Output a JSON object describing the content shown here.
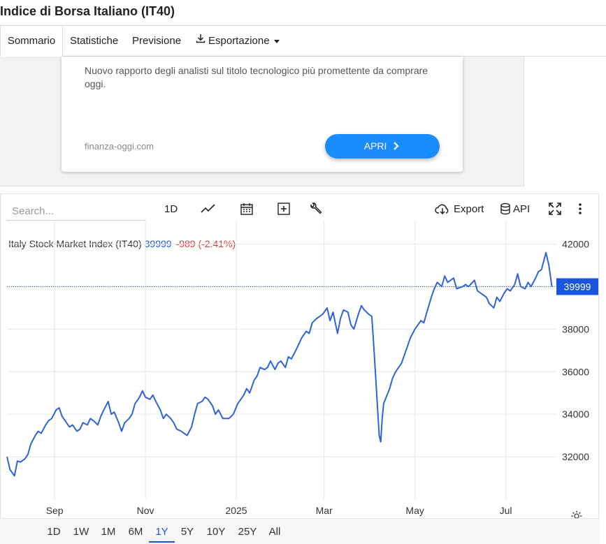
{
  "page": {
    "title": "Indice di Borsa Italiano (IT40)"
  },
  "tabs": [
    {
      "label": "Sommario",
      "active": true
    },
    {
      "label": "Statistiche"
    },
    {
      "label": "Previsione"
    },
    {
      "label": "Esportazione",
      "icon": "download-icon"
    }
  ],
  "ad": {
    "text": "Nuovo rapporto degli analisti sul titolo tecnologico più promettente da comprare oggi.",
    "domain": "finanza-oggi.com",
    "button_label": "APRI"
  },
  "chart_toolbar": {
    "search_placeholder": "Search...",
    "interval_label": "1D",
    "export_label": "Export",
    "api_label": "API",
    "icons": [
      "line-chart-icon",
      "calendar-icon",
      "add-icon",
      "wrench-icon",
      "cloud-download-icon",
      "database-icon",
      "fullscreen-icon",
      "more-vert-icon",
      "settings-icon"
    ]
  },
  "legend": {
    "name": "Italy Stock Market Index (IT40)",
    "value": "39999",
    "change": "-989 (-2.41%)"
  },
  "colors": {
    "line": "#2f63d8",
    "accent": "#1a56db",
    "negative": "#e03a3a",
    "ad_button": "#1a8cff"
  },
  "chart_data": {
    "type": "line",
    "title": "Italy Stock Market Index (IT40)",
    "x_tick_labels": [
      "Sep",
      "Nov",
      "2025",
      "Mar",
      "May",
      "Jul"
    ],
    "x_tick_dates": [
      "2024-09-01",
      "2024-11-01",
      "2025-01-01",
      "2025-03-01",
      "2025-05-01",
      "2025-07-01"
    ],
    "y_ticks": [
      32000,
      34000,
      36000,
      38000,
      40000,
      42000
    ],
    "y_tick_labels": [
      "32000",
      "34000",
      "36000",
      "38000",
      "",
      "42000"
    ],
    "ylim": [
      30000,
      43100
    ],
    "last_price_label": "39999",
    "last_price": 39999,
    "grid": true,
    "series": [
      {
        "points": [
          [
            "2024-07-31",
            32000
          ],
          [
            "2024-08-02",
            31400
          ],
          [
            "2024-08-05",
            31100
          ],
          [
            "2024-08-07",
            31800
          ],
          [
            "2024-08-09",
            31750
          ],
          [
            "2024-08-12",
            31900
          ],
          [
            "2024-08-14",
            32100
          ],
          [
            "2024-08-16",
            32600
          ],
          [
            "2024-08-19",
            33000
          ],
          [
            "2024-08-21",
            33200
          ],
          [
            "2024-08-23",
            33100
          ],
          [
            "2024-08-26",
            33500
          ],
          [
            "2024-08-28",
            33700
          ],
          [
            "2024-08-30",
            33800
          ],
          [
            "2024-09-02",
            34200
          ],
          [
            "2024-09-04",
            34300
          ],
          [
            "2024-09-06",
            33900
          ],
          [
            "2024-09-09",
            33600
          ],
          [
            "2024-09-11",
            33400
          ],
          [
            "2024-09-13",
            33500
          ],
          [
            "2024-09-16",
            33200
          ],
          [
            "2024-09-18",
            33300
          ],
          [
            "2024-09-20",
            33600
          ],
          [
            "2024-09-23",
            33500
          ],
          [
            "2024-09-25",
            33800
          ],
          [
            "2024-09-27",
            33700
          ],
          [
            "2024-09-30",
            33500
          ],
          [
            "2024-10-02",
            33900
          ],
          [
            "2024-10-04",
            34200
          ],
          [
            "2024-10-07",
            34600
          ],
          [
            "2024-10-09",
            34000
          ],
          [
            "2024-10-11",
            34100
          ],
          [
            "2024-10-14",
            33600
          ],
          [
            "2024-10-16",
            33200
          ],
          [
            "2024-10-18",
            33600
          ],
          [
            "2024-10-21",
            33800
          ],
          [
            "2024-10-23",
            34000
          ],
          [
            "2024-10-25",
            34500
          ],
          [
            "2024-10-28",
            34800
          ],
          [
            "2024-10-30",
            35100
          ],
          [
            "2024-11-01",
            34800
          ],
          [
            "2024-11-04",
            34700
          ],
          [
            "2024-11-06",
            34900
          ],
          [
            "2024-11-08",
            34600
          ],
          [
            "2024-11-11",
            34200
          ],
          [
            "2024-11-13",
            33800
          ],
          [
            "2024-11-15",
            34000
          ],
          [
            "2024-11-18",
            33800
          ],
          [
            "2024-11-20",
            33600
          ],
          [
            "2024-11-22",
            33300
          ],
          [
            "2024-11-25",
            33200
          ],
          [
            "2024-11-27",
            33100
          ],
          [
            "2024-11-29",
            33000
          ],
          [
            "2024-12-02",
            33400
          ],
          [
            "2024-12-04",
            34000
          ],
          [
            "2024-12-06",
            34500
          ],
          [
            "2024-12-09",
            34600
          ],
          [
            "2024-12-11",
            34800
          ],
          [
            "2024-12-13",
            34700
          ],
          [
            "2024-12-16",
            34400
          ],
          [
            "2024-12-18",
            34000
          ],
          [
            "2024-12-20",
            34200
          ],
          [
            "2024-12-23",
            33800
          ],
          [
            "2024-12-27",
            33800
          ],
          [
            "2024-12-30",
            34000
          ],
          [
            "2025-01-02",
            34500
          ],
          [
            "2025-01-06",
            34900
          ],
          [
            "2025-01-08",
            35200
          ],
          [
            "2025-01-10",
            35000
          ],
          [
            "2025-01-13",
            35600
          ],
          [
            "2025-01-15",
            35800
          ],
          [
            "2025-01-17",
            36200
          ],
          [
            "2025-01-20",
            36100
          ],
          [
            "2025-01-22",
            36200
          ],
          [
            "2025-01-24",
            36500
          ],
          [
            "2025-01-27",
            36100
          ],
          [
            "2025-01-29",
            36400
          ],
          [
            "2025-01-31",
            36500
          ],
          [
            "2025-02-03",
            36200
          ],
          [
            "2025-02-05",
            36700
          ],
          [
            "2025-02-07",
            36600
          ],
          [
            "2025-02-10",
            37000
          ],
          [
            "2025-02-12",
            37300
          ],
          [
            "2025-02-14",
            37600
          ],
          [
            "2025-02-17",
            37900
          ],
          [
            "2025-02-19",
            37800
          ],
          [
            "2025-02-21",
            38300
          ],
          [
            "2025-02-24",
            38500
          ],
          [
            "2025-02-26",
            38600
          ],
          [
            "2025-02-28",
            38700
          ],
          [
            "2025-03-03",
            39000
          ],
          [
            "2025-03-05",
            38400
          ],
          [
            "2025-03-07",
            38800
          ],
          [
            "2025-03-10",
            37800
          ],
          [
            "2025-03-12",
            38500
          ],
          [
            "2025-03-14",
            38900
          ],
          [
            "2025-03-17",
            38800
          ],
          [
            "2025-03-19",
            38200
          ],
          [
            "2025-03-21",
            38000
          ],
          [
            "2025-03-24",
            38700
          ],
          [
            "2025-03-26",
            39100
          ],
          [
            "2025-03-28",
            38900
          ],
          [
            "2025-03-31",
            38700
          ],
          [
            "2025-04-02",
            38600
          ],
          [
            "2025-04-03",
            37600
          ],
          [
            "2025-04-04",
            36500
          ],
          [
            "2025-04-07",
            33000
          ],
          [
            "2025-04-08",
            32700
          ],
          [
            "2025-04-09",
            33800
          ],
          [
            "2025-04-10",
            34500
          ],
          [
            "2025-04-14",
            35200
          ],
          [
            "2025-04-16",
            35700
          ],
          [
            "2025-04-18",
            36000
          ],
          [
            "2025-04-22",
            36400
          ],
          [
            "2025-04-24",
            36800
          ],
          [
            "2025-04-28",
            37600
          ],
          [
            "2025-05-01",
            38000
          ],
          [
            "2025-05-05",
            38400
          ],
          [
            "2025-05-07",
            38300
          ],
          [
            "2025-05-09",
            38800
          ],
          [
            "2025-05-12",
            39500
          ],
          [
            "2025-05-14",
            39900
          ],
          [
            "2025-05-16",
            40200
          ],
          [
            "2025-05-19",
            40000
          ],
          [
            "2025-05-21",
            40500
          ],
          [
            "2025-05-23",
            40200
          ],
          [
            "2025-05-27",
            40400
          ],
          [
            "2025-05-29",
            39900
          ],
          [
            "2025-06-02",
            40000
          ],
          [
            "2025-06-04",
            40100
          ],
          [
            "2025-06-06",
            40000
          ],
          [
            "2025-06-10",
            40300
          ],
          [
            "2025-06-12",
            39800
          ],
          [
            "2025-06-16",
            39600
          ],
          [
            "2025-06-18",
            39500
          ],
          [
            "2025-06-20",
            39200
          ],
          [
            "2025-06-23",
            39000
          ],
          [
            "2025-06-25",
            39500
          ],
          [
            "2025-06-27",
            39300
          ],
          [
            "2025-06-30",
            39700
          ],
          [
            "2025-07-02",
            39900
          ],
          [
            "2025-07-04",
            39800
          ],
          [
            "2025-07-07",
            40100
          ],
          [
            "2025-07-09",
            40600
          ],
          [
            "2025-07-11",
            40000
          ],
          [
            "2025-07-14",
            39900
          ],
          [
            "2025-07-16",
            40200
          ],
          [
            "2025-07-18",
            40000
          ],
          [
            "2025-07-21",
            40400
          ],
          [
            "2025-07-23",
            40700
          ],
          [
            "2025-07-25",
            40800
          ],
          [
            "2025-07-28",
            41600
          ],
          [
            "2025-07-30",
            41000
          ],
          [
            "2025-08-01",
            39999
          ]
        ]
      }
    ]
  },
  "range_buttons": [
    {
      "label": "1D"
    },
    {
      "label": "1W"
    },
    {
      "label": "1M"
    },
    {
      "label": "6M"
    },
    {
      "label": "1Y",
      "active": true
    },
    {
      "label": "5Y"
    },
    {
      "label": "10Y"
    },
    {
      "label": "25Y"
    },
    {
      "label": "All"
    }
  ]
}
